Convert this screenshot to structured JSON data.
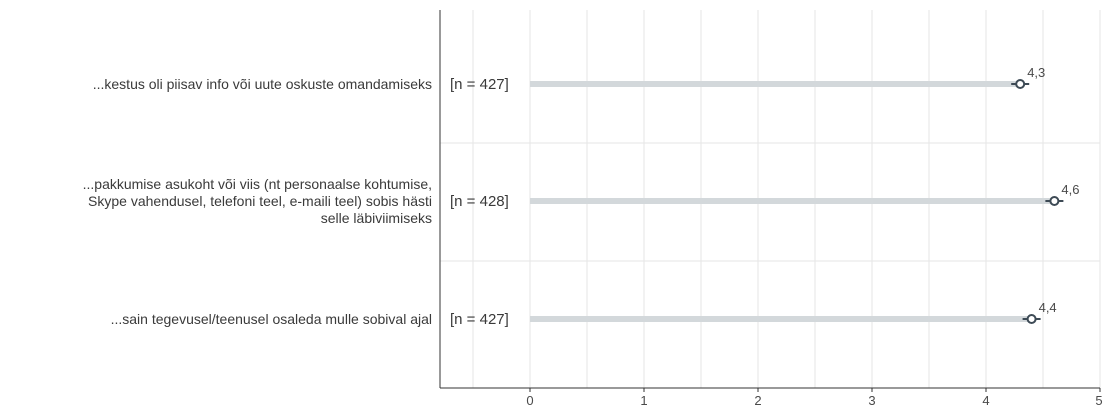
{
  "chart_data": {
    "type": "dot",
    "orientation": "horizontal",
    "categories": [
      {
        "label_lines": [
          "...kestus oli piisav info või uute oskuste omandamiseks"
        ],
        "n_label": "[n = 427]",
        "value": 4.3,
        "value_label": "4,3"
      },
      {
        "label_lines": [
          "...pakkumise asukoht või viis (nt personaalse kohtumise,",
          "Skype vahendusel, telefoni teel, e-maili teel) sobis hästi",
          "selle läbiviimiseks"
        ],
        "n_label": "[n = 428]",
        "value": 4.6,
        "value_label": "4,6"
      },
      {
        "label_lines": [
          "...sain tegevusel/teenusel osaleda mulle sobival ajal"
        ],
        "n_label": "[n = 427]",
        "value": 4.4,
        "value_label": "4,4"
      }
    ],
    "x_ticks": [
      0,
      1,
      2,
      3,
      4,
      5
    ],
    "x_tick_labels": [
      "0",
      "1",
      "2",
      "3",
      "4",
      "5"
    ],
    "xlim": [
      -0.8,
      5
    ],
    "grid": true,
    "colors": {
      "bar": "#d3d8db",
      "marker": "#3d4a55",
      "grid": "#e6e6e6",
      "axis": "#333333"
    }
  }
}
